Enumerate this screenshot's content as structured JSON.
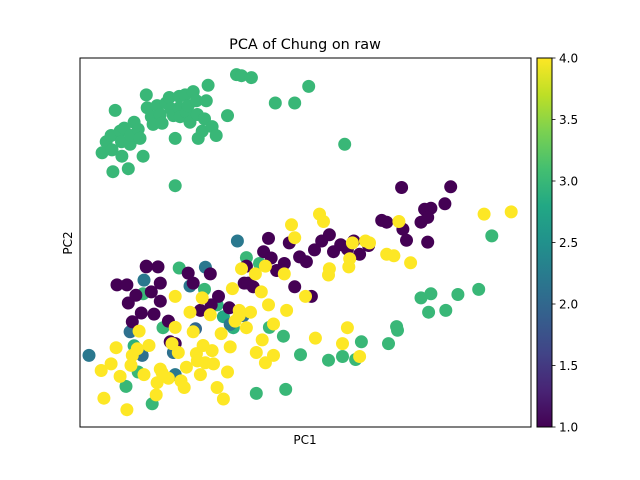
{
  "chart_data": {
    "type": "scatter",
    "title": "PCA of Chung on raw",
    "xlabel": "PC1",
    "ylabel": "PC2",
    "x_ticks_shown": false,
    "y_ticks_shown": false,
    "xlim": [
      0,
      100
    ],
    "ylim": [
      0,
      100
    ],
    "colorbar": {
      "colormap": "viridis",
      "range": [
        1.0,
        4.0
      ],
      "ticks": [
        "1.0",
        "1.5",
        "2.0",
        "2.5",
        "3.0",
        "3.5",
        "4.0"
      ]
    },
    "grid": false,
    "points": [
      {
        "x": 4.9,
        "y": 74.3,
        "c": 3.0
      },
      {
        "x": 5.8,
        "y": 77.3,
        "c": 3.0
      },
      {
        "x": 6.9,
        "y": 79.0,
        "c": 3.0
      },
      {
        "x": 7.1,
        "y": 75.1,
        "c": 3.0
      },
      {
        "x": 7.3,
        "y": 69.2,
        "c": 3.0
      },
      {
        "x": 7.8,
        "y": 85.8,
        "c": 3.0
      },
      {
        "x": 8.9,
        "y": 80.2,
        "c": 3.0
      },
      {
        "x": 9.2,
        "y": 77.3,
        "c": 3.0
      },
      {
        "x": 9.3,
        "y": 73.4,
        "c": 3.0
      },
      {
        "x": 9.8,
        "y": 81.0,
        "c": 3.0
      },
      {
        "x": 10.7,
        "y": 70.0,
        "c": 3.0
      },
      {
        "x": 11.1,
        "y": 76.6,
        "c": 3.0
      },
      {
        "x": 11.3,
        "y": 79.0,
        "c": 3.0
      },
      {
        "x": 12.0,
        "y": 82.6,
        "c": 3.0
      },
      {
        "x": 12.9,
        "y": 80.7,
        "c": 3.0
      },
      {
        "x": 13.3,
        "y": 78.2,
        "c": 3.0
      },
      {
        "x": 14.0,
        "y": 73.4,
        "c": 3.0
      },
      {
        "x": 14.7,
        "y": 90.0,
        "c": 3.0
      },
      {
        "x": 14.9,
        "y": 86.5,
        "c": 3.0
      },
      {
        "x": 15.8,
        "y": 84.1,
        "c": 3.0
      },
      {
        "x": 16.2,
        "y": 82.0,
        "c": 3.0
      },
      {
        "x": 17.1,
        "y": 87.1,
        "c": 3.0
      },
      {
        "x": 17.8,
        "y": 84.7,
        "c": 3.0
      },
      {
        "x": 18.2,
        "y": 82.3,
        "c": 3.0
      },
      {
        "x": 19.1,
        "y": 87.8,
        "c": 3.0
      },
      {
        "x": 19.8,
        "y": 89.3,
        "c": 3.0
      },
      {
        "x": 20.2,
        "y": 86.2,
        "c": 3.0
      },
      {
        "x": 20.7,
        "y": 84.4,
        "c": 3.0
      },
      {
        "x": 21.1,
        "y": 78.2,
        "c": 3.0
      },
      {
        "x": 21.1,
        "y": 65.4,
        "c": 3.0
      },
      {
        "x": 22.0,
        "y": 89.6,
        "c": 3.0
      },
      {
        "x": 22.0,
        "y": 86.5,
        "c": 3.0
      },
      {
        "x": 22.2,
        "y": 84.1,
        "c": 3.0
      },
      {
        "x": 23.3,
        "y": 90.0,
        "c": 3.0
      },
      {
        "x": 23.6,
        "y": 85.3,
        "c": 3.0
      },
      {
        "x": 24.0,
        "y": 87.1,
        "c": 3.0
      },
      {
        "x": 24.4,
        "y": 82.6,
        "c": 3.0
      },
      {
        "x": 25.1,
        "y": 90.9,
        "c": 3.0
      },
      {
        "x": 25.8,
        "y": 88.4,
        "c": 3.0
      },
      {
        "x": 26.0,
        "y": 84.7,
        "c": 3.0
      },
      {
        "x": 26.2,
        "y": 78.2,
        "c": 3.0
      },
      {
        "x": 27.1,
        "y": 80.2,
        "c": 3.0
      },
      {
        "x": 27.6,
        "y": 83.5,
        "c": 3.0
      },
      {
        "x": 28.0,
        "y": 88.4,
        "c": 3.0
      },
      {
        "x": 28.4,
        "y": 92.6,
        "c": 3.0
      },
      {
        "x": 29.3,
        "y": 81.4,
        "c": 3.0
      },
      {
        "x": 30.2,
        "y": 79.0,
        "c": 3.0
      },
      {
        "x": 32.7,
        "y": 84.4,
        "c": 3.0
      },
      {
        "x": 34.7,
        "y": 95.5,
        "c": 3.0
      },
      {
        "x": 35.8,
        "y": 95.2,
        "c": 3.0
      },
      {
        "x": 38.0,
        "y": 94.7,
        "c": 3.0
      },
      {
        "x": 43.3,
        "y": 87.8,
        "c": 3.0
      },
      {
        "x": 47.6,
        "y": 87.8,
        "c": 3.0
      },
      {
        "x": 50.7,
        "y": 92.3,
        "c": 3.0
      },
      {
        "x": 58.7,
        "y": 76.6,
        "c": 3.0
      },
      {
        "x": 30.4,
        "y": 33.1,
        "c": 2.9
      },
      {
        "x": 31.8,
        "y": 29.9,
        "c": 2.8
      },
      {
        "x": 34.0,
        "y": 26.9,
        "c": 2.9
      },
      {
        "x": 42.0,
        "y": 27.0,
        "c": 3.0
      },
      {
        "x": 45.1,
        "y": 24.6,
        "c": 3.0
      },
      {
        "x": 48.9,
        "y": 19.6,
        "c": 3.0
      },
      {
        "x": 55.1,
        "y": 18.1,
        "c": 3.0
      },
      {
        "x": 58.2,
        "y": 19.1,
        "c": 3.0
      },
      {
        "x": 61.1,
        "y": 18.3,
        "c": 3.0
      },
      {
        "x": 62.4,
        "y": 23.1,
        "c": 3.0
      },
      {
        "x": 68.4,
        "y": 22.6,
        "c": 3.0
      },
      {
        "x": 70.2,
        "y": 27.2,
        "c": 3.0
      },
      {
        "x": 70.4,
        "y": 26.2,
        "c": 3.0
      },
      {
        "x": 75.6,
        "y": 35.0,
        "c": 3.0
      },
      {
        "x": 77.3,
        "y": 31.1,
        "c": 3.0
      },
      {
        "x": 77.8,
        "y": 36.1,
        "c": 3.0
      },
      {
        "x": 81.1,
        "y": 31.6,
        "c": 3.0
      },
      {
        "x": 83.8,
        "y": 35.9,
        "c": 3.0
      },
      {
        "x": 88.4,
        "y": 37.3,
        "c": 3.0
      },
      {
        "x": 91.3,
        "y": 51.8,
        "c": 3.0
      },
      {
        "x": 22.0,
        "y": 43.1,
        "c": 3.0
      },
      {
        "x": 27.6,
        "y": 37.3,
        "c": 3.0
      },
      {
        "x": 36.9,
        "y": 45.9,
        "c": 3.0
      },
      {
        "x": 18.4,
        "y": 26.9,
        "c": 3.0
      },
      {
        "x": 12.9,
        "y": 14.9,
        "c": 3.0
      },
      {
        "x": 10.2,
        "y": 11.0,
        "c": 3.0
      },
      {
        "x": 39.1,
        "y": 9.1,
        "c": 3.0
      },
      {
        "x": 45.6,
        "y": 10.2,
        "c": 3.0
      },
      {
        "x": 16.0,
        "y": 6.3,
        "c": 3.0
      },
      {
        "x": 14.0,
        "y": 36.1,
        "c": 3.0
      },
      {
        "x": 39.8,
        "y": 44.3,
        "c": 3.0
      },
      {
        "x": 12.0,
        "y": 22.0,
        "c": 2.9
      },
      {
        "x": 34.9,
        "y": 50.4,
        "c": 2.2
      },
      {
        "x": 27.8,
        "y": 43.3,
        "c": 2.2
      },
      {
        "x": 24.4,
        "y": 38.2,
        "c": 2.2
      },
      {
        "x": 36.2,
        "y": 30.2,
        "c": 2.1
      },
      {
        "x": 2.0,
        "y": 19.4,
        "c": 2.2
      },
      {
        "x": 11.1,
        "y": 25.8,
        "c": 2.1
      },
      {
        "x": 20.7,
        "y": 20.2,
        "c": 2.1
      },
      {
        "x": 14.2,
        "y": 39.8,
        "c": 2.2
      },
      {
        "x": 33.3,
        "y": 27.8,
        "c": 2.2
      },
      {
        "x": 25.6,
        "y": 26.6,
        "c": 2.0
      },
      {
        "x": 13.8,
        "y": 19.4,
        "c": 2.1
      },
      {
        "x": 21.1,
        "y": 14.2,
        "c": 2.2
      },
      {
        "x": 8.2,
        "y": 38.5,
        "c": 1.0
      },
      {
        "x": 10.4,
        "y": 38.5,
        "c": 1.0
      },
      {
        "x": 10.7,
        "y": 33.6,
        "c": 1.0
      },
      {
        "x": 11.6,
        "y": 28.5,
        "c": 1.0
      },
      {
        "x": 12.4,
        "y": 35.7,
        "c": 1.0
      },
      {
        "x": 14.7,
        "y": 43.4,
        "c": 1.0
      },
      {
        "x": 15.8,
        "y": 36.6,
        "c": 1.0
      },
      {
        "x": 16.4,
        "y": 30.6,
        "c": 1.0
      },
      {
        "x": 17.3,
        "y": 43.4,
        "c": 1.0
      },
      {
        "x": 17.8,
        "y": 39.0,
        "c": 1.0
      },
      {
        "x": 17.8,
        "y": 34.1,
        "c": 1.0
      },
      {
        "x": 19.6,
        "y": 28.7,
        "c": 1.0
      },
      {
        "x": 21.1,
        "y": 22.6,
        "c": 1.0
      },
      {
        "x": 24.0,
        "y": 41.7,
        "c": 1.0
      },
      {
        "x": 25.1,
        "y": 39.0,
        "c": 1.0
      },
      {
        "x": 26.7,
        "y": 31.6,
        "c": 1.0
      },
      {
        "x": 28.9,
        "y": 41.5,
        "c": 1.0
      },
      {
        "x": 30.7,
        "y": 35.4,
        "c": 1.0
      },
      {
        "x": 33.1,
        "y": 32.3,
        "c": 1.0
      },
      {
        "x": 36.4,
        "y": 39.0,
        "c": 1.0
      },
      {
        "x": 38.4,
        "y": 38.0,
        "c": 1.0
      },
      {
        "x": 40.7,
        "y": 47.5,
        "c": 1.0
      },
      {
        "x": 42.4,
        "y": 45.8,
        "c": 1.0
      },
      {
        "x": 43.6,
        "y": 42.4,
        "c": 1.0
      },
      {
        "x": 45.3,
        "y": 44.3,
        "c": 1.0
      },
      {
        "x": 46.4,
        "y": 49.9,
        "c": 1.0
      },
      {
        "x": 47.6,
        "y": 38.0,
        "c": 1.0
      },
      {
        "x": 48.7,
        "y": 46.1,
        "c": 1.0
      },
      {
        "x": 50.2,
        "y": 44.8,
        "c": 1.0
      },
      {
        "x": 51.3,
        "y": 35.4,
        "c": 1.0
      },
      {
        "x": 52.0,
        "y": 48.0,
        "c": 1.0
      },
      {
        "x": 53.6,
        "y": 50.4,
        "c": 1.0
      },
      {
        "x": 55.3,
        "y": 52.1,
        "c": 1.0
      },
      {
        "x": 56.2,
        "y": 47.5,
        "c": 1.0
      },
      {
        "x": 57.8,
        "y": 49.4,
        "c": 1.0
      },
      {
        "x": 59.3,
        "y": 48.2,
        "c": 1.0
      },
      {
        "x": 60.7,
        "y": 50.4,
        "c": 1.0
      },
      {
        "x": 62.0,
        "y": 46.8,
        "c": 1.0
      },
      {
        "x": 64.0,
        "y": 49.2,
        "c": 1.0
      },
      {
        "x": 66.9,
        "y": 56.0,
        "c": 1.0
      },
      {
        "x": 68.0,
        "y": 55.5,
        "c": 1.0
      },
      {
        "x": 71.6,
        "y": 53.6,
        "c": 1.0
      },
      {
        "x": 72.4,
        "y": 50.6,
        "c": 1.0
      },
      {
        "x": 75.6,
        "y": 55.5,
        "c": 1.0
      },
      {
        "x": 76.4,
        "y": 59.0,
        "c": 1.0
      },
      {
        "x": 77.8,
        "y": 59.3,
        "c": 1.0
      },
      {
        "x": 77.1,
        "y": 56.8,
        "c": 1.0
      },
      {
        "x": 80.9,
        "y": 60.5,
        "c": 1.0
      },
      {
        "x": 82.2,
        "y": 65.1,
        "c": 1.0
      },
      {
        "x": 77.1,
        "y": 50.1,
        "c": 1.0
      },
      {
        "x": 71.3,
        "y": 64.9,
        "c": 1.0
      },
      {
        "x": 14.7,
        "y": 43.6,
        "c": 1.0
      },
      {
        "x": 13.6,
        "y": 30.9,
        "c": 1.0
      },
      {
        "x": 36.9,
        "y": 43.6,
        "c": 1.0
      },
      {
        "x": 37.3,
        "y": 39.0,
        "c": 1.0
      },
      {
        "x": 29.1,
        "y": 33.1,
        "c": 1.0
      },
      {
        "x": 41.8,
        "y": 51.1,
        "c": 1.0
      },
      {
        "x": 20.0,
        "y": 23.1,
        "c": 1.0
      },
      {
        "x": 4.7,
        "y": 15.3,
        "c": 4.0
      },
      {
        "x": 5.3,
        "y": 7.8,
        "c": 4.0
      },
      {
        "x": 6.9,
        "y": 17.1,
        "c": 4.0
      },
      {
        "x": 10.4,
        "y": 4.7,
        "c": 4.0
      },
      {
        "x": 11.3,
        "y": 16.7,
        "c": 4.0
      },
      {
        "x": 11.6,
        "y": 19.4,
        "c": 4.0
      },
      {
        "x": 12.7,
        "y": 21.2,
        "c": 4.0
      },
      {
        "x": 13.1,
        "y": 26.0,
        "c": 4.0
      },
      {
        "x": 14.2,
        "y": 14.2,
        "c": 4.0
      },
      {
        "x": 16.9,
        "y": 8.7,
        "c": 4.0
      },
      {
        "x": 17.1,
        "y": 12.0,
        "c": 4.0
      },
      {
        "x": 17.8,
        "y": 15.7,
        "c": 4.0
      },
      {
        "x": 19.6,
        "y": 13.2,
        "c": 4.0
      },
      {
        "x": 20.4,
        "y": 22.6,
        "c": 4.0
      },
      {
        "x": 21.1,
        "y": 27.0,
        "c": 4.0
      },
      {
        "x": 21.8,
        "y": 20.2,
        "c": 4.0
      },
      {
        "x": 22.4,
        "y": 12.5,
        "c": 4.0
      },
      {
        "x": 23.6,
        "y": 16.2,
        "c": 4.0
      },
      {
        "x": 24.4,
        "y": 31.1,
        "c": 4.0
      },
      {
        "x": 25.1,
        "y": 25.8,
        "c": 4.0
      },
      {
        "x": 25.8,
        "y": 19.9,
        "c": 4.0
      },
      {
        "x": 26.7,
        "y": 14.2,
        "c": 4.0
      },
      {
        "x": 27.3,
        "y": 22.1,
        "c": 4.0
      },
      {
        "x": 27.8,
        "y": 17.4,
        "c": 4.0
      },
      {
        "x": 28.9,
        "y": 30.4,
        "c": 4.0
      },
      {
        "x": 29.3,
        "y": 20.7,
        "c": 4.0
      },
      {
        "x": 29.6,
        "y": 17.1,
        "c": 4.0
      },
      {
        "x": 30.4,
        "y": 10.7,
        "c": 4.0
      },
      {
        "x": 31.3,
        "y": 25.3,
        "c": 4.0
      },
      {
        "x": 31.8,
        "y": 7.6,
        "c": 4.0
      },
      {
        "x": 32.7,
        "y": 14.9,
        "c": 4.0
      },
      {
        "x": 33.3,
        "y": 21.7,
        "c": 4.0
      },
      {
        "x": 34.4,
        "y": 28.7,
        "c": 4.0
      },
      {
        "x": 35.3,
        "y": 30.2,
        "c": 4.0
      },
      {
        "x": 35.8,
        "y": 42.9,
        "c": 4.0
      },
      {
        "x": 36.9,
        "y": 26.9,
        "c": 4.0
      },
      {
        "x": 37.8,
        "y": 31.1,
        "c": 4.0
      },
      {
        "x": 38.9,
        "y": 41.5,
        "c": 4.0
      },
      {
        "x": 39.1,
        "y": 20.2,
        "c": 4.0
      },
      {
        "x": 40.4,
        "y": 23.6,
        "c": 4.0
      },
      {
        "x": 40.2,
        "y": 36.6,
        "c": 4.0
      },
      {
        "x": 41.1,
        "y": 43.6,
        "c": 4.0
      },
      {
        "x": 41.1,
        "y": 17.4,
        "c": 4.0
      },
      {
        "x": 42.9,
        "y": 19.4,
        "c": 4.0
      },
      {
        "x": 42.9,
        "y": 27.9,
        "c": 4.0
      },
      {
        "x": 45.8,
        "y": 31.6,
        "c": 4.0
      },
      {
        "x": 47.6,
        "y": 51.3,
        "c": 4.0
      },
      {
        "x": 46.9,
        "y": 54.8,
        "c": 4.0
      },
      {
        "x": 53.1,
        "y": 57.7,
        "c": 4.0
      },
      {
        "x": 54.0,
        "y": 55.7,
        "c": 4.0
      },
      {
        "x": 55.3,
        "y": 42.9,
        "c": 4.0
      },
      {
        "x": 55.1,
        "y": 41.2,
        "c": 4.0
      },
      {
        "x": 58.2,
        "y": 22.6,
        "c": 4.0
      },
      {
        "x": 59.3,
        "y": 26.9,
        "c": 4.0
      },
      {
        "x": 59.6,
        "y": 43.4,
        "c": 4.0
      },
      {
        "x": 59.8,
        "y": 45.6,
        "c": 4.0
      },
      {
        "x": 60.4,
        "y": 49.9,
        "c": 4.0
      },
      {
        "x": 62.0,
        "y": 19.1,
        "c": 4.0
      },
      {
        "x": 63.3,
        "y": 50.4,
        "c": 4.0
      },
      {
        "x": 64.2,
        "y": 49.9,
        "c": 4.0
      },
      {
        "x": 68.0,
        "y": 46.8,
        "c": 4.0
      },
      {
        "x": 69.6,
        "y": 46.4,
        "c": 4.0
      },
      {
        "x": 70.7,
        "y": 55.7,
        "c": 4.0
      },
      {
        "x": 73.3,
        "y": 44.5,
        "c": 4.0
      },
      {
        "x": 95.6,
        "y": 58.3,
        "c": 4.0
      },
      {
        "x": 89.6,
        "y": 57.7,
        "c": 4.0
      },
      {
        "x": 8.9,
        "y": 13.7,
        "c": 4.0
      },
      {
        "x": 18.2,
        "y": 14.7,
        "c": 4.0
      },
      {
        "x": 23.1,
        "y": 10.7,
        "c": 4.0
      },
      {
        "x": 26.0,
        "y": 17.9,
        "c": 4.0
      },
      {
        "x": 35.3,
        "y": 31.6,
        "c": 4.0
      },
      {
        "x": 41.8,
        "y": 33.1,
        "c": 4.0
      },
      {
        "x": 50.0,
        "y": 35.4,
        "c": 4.0
      },
      {
        "x": 33.8,
        "y": 37.5,
        "c": 4.0
      },
      {
        "x": 27.1,
        "y": 35.0,
        "c": 4.0
      },
      {
        "x": 21.1,
        "y": 35.4,
        "c": 4.0
      },
      {
        "x": 45.3,
        "y": 41.5,
        "c": 4.0
      },
      {
        "x": 52.2,
        "y": 24.1,
        "c": 4.0
      },
      {
        "x": 8.0,
        "y": 21.5,
        "c": 4.0
      },
      {
        "x": 15.3,
        "y": 22.1,
        "c": 4.0
      }
    ]
  }
}
